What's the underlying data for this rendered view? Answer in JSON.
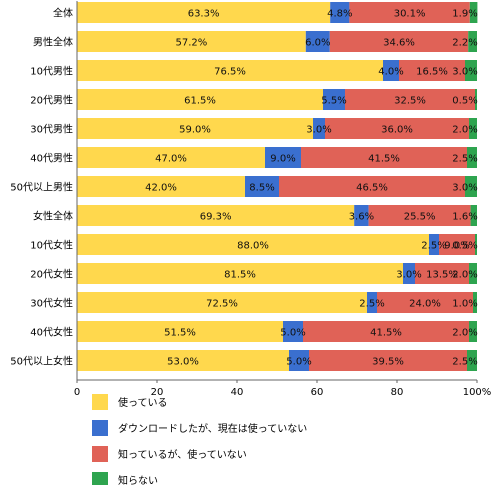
{
  "chart_data": {
    "type": "bar",
    "orientation": "horizontal",
    "stacked": true,
    "categories": [
      "全体",
      "男性全体",
      "10代男性",
      "20代男性",
      "30代男性",
      "40代男性",
      "50代以上男性",
      "女性全体",
      "10代女性",
      "20代女性",
      "30代女性",
      "40代女性",
      "50代以上女性"
    ],
    "series": [
      {
        "name": "使っている",
        "color": "#FFD84D",
        "values": [
          63.3,
          57.2,
          76.5,
          61.5,
          59.0,
          47.0,
          42.0,
          69.3,
          88.0,
          81.5,
          72.5,
          51.5,
          53.0
        ],
        "labels": [
          "63.3%",
          "57.2%",
          "76.5%",
          "61.5%",
          "59.0%",
          "47.0%",
          "42.0%",
          "69.3%",
          "88.0%",
          "81.5%",
          "72.5%",
          "51.5%",
          "53.0%"
        ]
      },
      {
        "name": "ダウンロードしたが、現在は使っていない",
        "color": "#3A6FCF",
        "values": [
          4.8,
          6.0,
          4.0,
          5.5,
          3.0,
          9.0,
          8.5,
          3.6,
          2.5,
          3.0,
          2.5,
          5.0,
          5.0
        ],
        "labels": [
          "4.8%",
          "6.0%",
          "4.0%",
          "5.5%",
          "3.0%",
          "9.0%",
          "8.5%",
          "3.6%",
          "2.5%",
          "3.0%",
          "2.5%",
          "5.0%",
          "5.0%"
        ]
      },
      {
        "name": "知っているが、使っていない",
        "color": "#E06257",
        "values": [
          30.1,
          34.6,
          16.5,
          32.5,
          36.0,
          41.5,
          46.5,
          25.5,
          9.0,
          13.5,
          24.0,
          41.5,
          39.5
        ],
        "labels": [
          "30.1%",
          "34.6%",
          "16.5%",
          "32.5%",
          "36.0%",
          "41.5%",
          "46.5%",
          "25.5%",
          "9.0%",
          "13.5%",
          "24.0%",
          "41.5%",
          "39.5%"
        ]
      },
      {
        "name": "知らない",
        "color": "#2EA44F",
        "values": [
          1.9,
          2.2,
          3.0,
          0.5,
          2.0,
          2.5,
          3.0,
          1.6,
          0.5,
          2.0,
          1.0,
          2.0,
          2.5
        ],
        "labels": [
          "1.9%",
          "2.2%",
          "3.0%",
          "0.5%",
          "2.0%",
          "2.5%",
          "3.0%",
          "1.6%",
          "0.5%",
          "2.0%",
          "1.0%",
          "2.0%",
          "2.5%"
        ]
      }
    ],
    "xaxis": {
      "ticks": [
        "0",
        "20",
        "40",
        "60",
        "80",
        "100%"
      ],
      "range": [
        0,
        100
      ]
    },
    "grid": false,
    "legend_position": "bottom"
  }
}
